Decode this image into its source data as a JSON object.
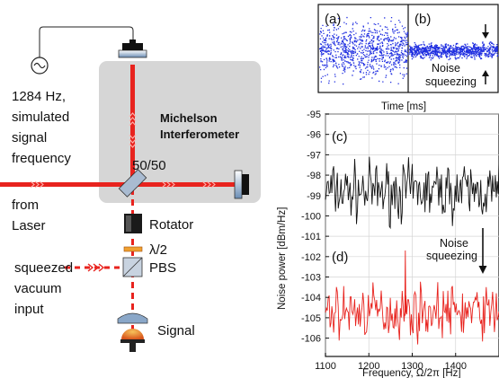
{
  "setup": {
    "signal_note": [
      "1284 Hz,",
      "simulated",
      "signal",
      "frequency"
    ],
    "interferometer": [
      "Michelson",
      "Interferometer"
    ],
    "beamsplitter": "50/50",
    "laser": [
      "from",
      "Laser"
    ],
    "rotator": "Rotator",
    "half_wave": "λ/2",
    "pbs": "PBS",
    "squeezed": [
      "squeezed",
      "vacuum",
      "input"
    ],
    "signal": "Signal",
    "colors": {
      "beam": "#e8231e",
      "box": "#d6d6d6",
      "detector": "#e89a2a"
    }
  },
  "top_panel": {
    "tag_a": "(a)",
    "tag_b": "(b)",
    "annotation": [
      "Noise",
      "squeezing"
    ],
    "xlabel": "Time [ms]",
    "color": "#1f2ee0"
  },
  "chart_data": {
    "type": "line",
    "xlabel": "Frequency, Ω/2π [Hz]",
    "ylabel": "Noise power [dBm/Hz]",
    "xlim": [
      1100,
      1500
    ],
    "ylim": [
      -106.9,
      -95
    ],
    "xticks": [
      1100,
      1200,
      1300,
      1400
    ],
    "yticks": [
      -95,
      -96,
      -97,
      -98,
      -99,
      -100,
      -101,
      -102,
      -103,
      -104,
      -105,
      -106
    ],
    "tag_c": "(c)",
    "tag_d": "(d)",
    "annotation": [
      "Noise",
      "squeezing"
    ],
    "series": [
      {
        "color": "#111111",
        "mean": -98.8,
        "spread": 0.55,
        "x": [
          1100,
          1500
        ],
        "note": "unsqueezed noise trace"
      },
      {
        "color": "#e8231e",
        "mean": -104.7,
        "spread": 0.5,
        "x": [
          1100,
          1500
        ],
        "peak": {
          "x": 1284,
          "y": -101.7
        }
      }
    ]
  }
}
